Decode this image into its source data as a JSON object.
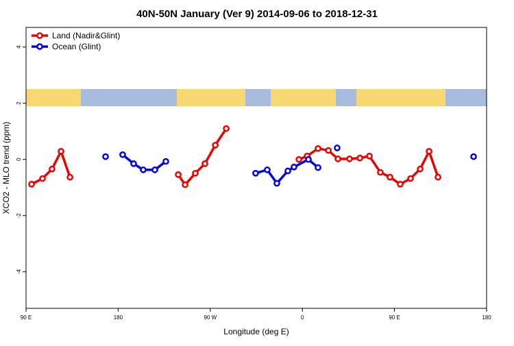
{
  "chart_data": {
    "type": "line",
    "title": "40N-50N January (Ver 9)   2014-09-06 to 2018-12-31",
    "x_label": "Longitude (deg E)",
    "y_label": "XCO2 - MLO trend (ppm)",
    "xlim": [
      90,
      540
    ],
    "ylim": [
      -5.3,
      4.7
    ],
    "xticks": [
      {
        "value": 90,
        "label": "90 E"
      },
      {
        "value": 180,
        "label": "180"
      },
      {
        "value": 270,
        "label": "90 W"
      },
      {
        "value": 360,
        "label": "0"
      },
      {
        "value": 450,
        "label": "90 E"
      },
      {
        "value": 540,
        "label": "180"
      }
    ],
    "yticks": [
      4,
      2,
      0,
      -2,
      -4
    ],
    "legend": "top-left",
    "series": [
      {
        "name": "Land (Nadir&Glint)",
        "color": "#ee0000",
        "x": [
          95.4,
          106.1,
          115.4,
          124.2,
          132.9,
          null,
          238.7,
          245.4,
          255.4,
          264.8,
          274.9,
          285.6,
          null,
          356.6,
          364.6,
          375.3,
          385.4,
          394.7,
          406.1,
          416.2,
          425.5,
          436.2,
          445.6,
          455.6,
          465.7,
          475.1,
          483.8,
          492.5
        ],
        "values": [
          -0.88,
          -0.68,
          -0.34,
          0.29,
          -0.63,
          null,
          -0.54,
          -0.9,
          -0.49,
          -0.15,
          0.51,
          1.1,
          null,
          0.0,
          0.12,
          0.39,
          0.32,
          0.02,
          0.02,
          0.05,
          0.12,
          -0.46,
          -0.63,
          -0.88,
          -0.68,
          -0.34,
          0.29,
          -0.63
        ]
      },
      {
        "name": "Ocean (Glint)",
        "color": "#0000ee",
        "x": [
          167.7,
          null,
          184.4,
          195.1,
          204.5,
          215.9,
          226.6,
          null,
          314.3,
          325.7,
          335.1,
          345.8,
          351.8,
          365.9,
          375.3,
          null,
          394.0,
          null,
          527.3
        ],
        "values": [
          0.1,
          null,
          0.17,
          -0.15,
          -0.37,
          -0.37,
          -0.07,
          null,
          -0.49,
          -0.37,
          -0.85,
          -0.41,
          -0.27,
          0.0,
          -0.29,
          null,
          0.41,
          null,
          0.1
        ]
      }
    ]
  }
}
